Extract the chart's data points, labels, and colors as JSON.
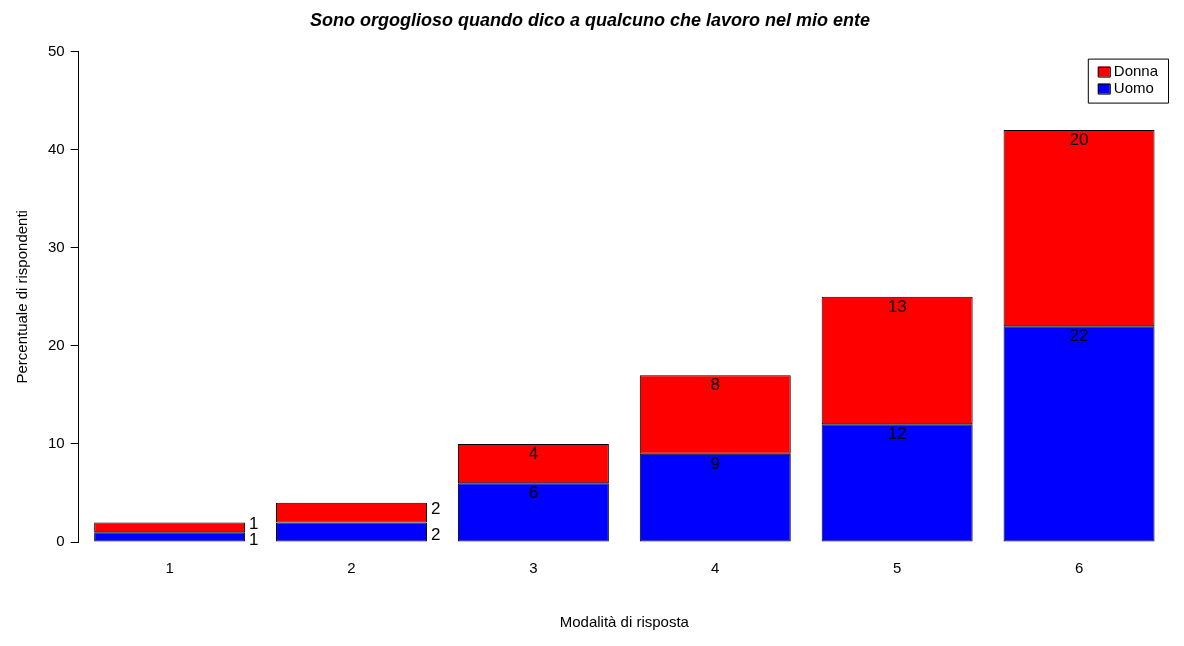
{
  "chart_data": {
    "type": "bar",
    "title": "Sono orgoglioso quando dico a qualcuno che lavoro nel mio ente",
    "xlabel": "Modalità di risposta",
    "ylabel": "Percentuale di rispondenti",
    "categories": [
      "1",
      "2",
      "3",
      "4",
      "5",
      "6"
    ],
    "series": [
      {
        "name": "Uomo",
        "color": "#0000ff",
        "values": [
          1,
          2,
          6,
          9,
          12,
          22
        ]
      },
      {
        "name": "Donna",
        "color": "#ff0000",
        "values": [
          1,
          2,
          4,
          8,
          13,
          20
        ]
      }
    ],
    "stacked": true,
    "ylim": [
      0,
      50
    ],
    "yticks": [
      0,
      10,
      20,
      30,
      40,
      50
    ],
    "grid": false,
    "legend": "top right",
    "data_labels": true
  }
}
